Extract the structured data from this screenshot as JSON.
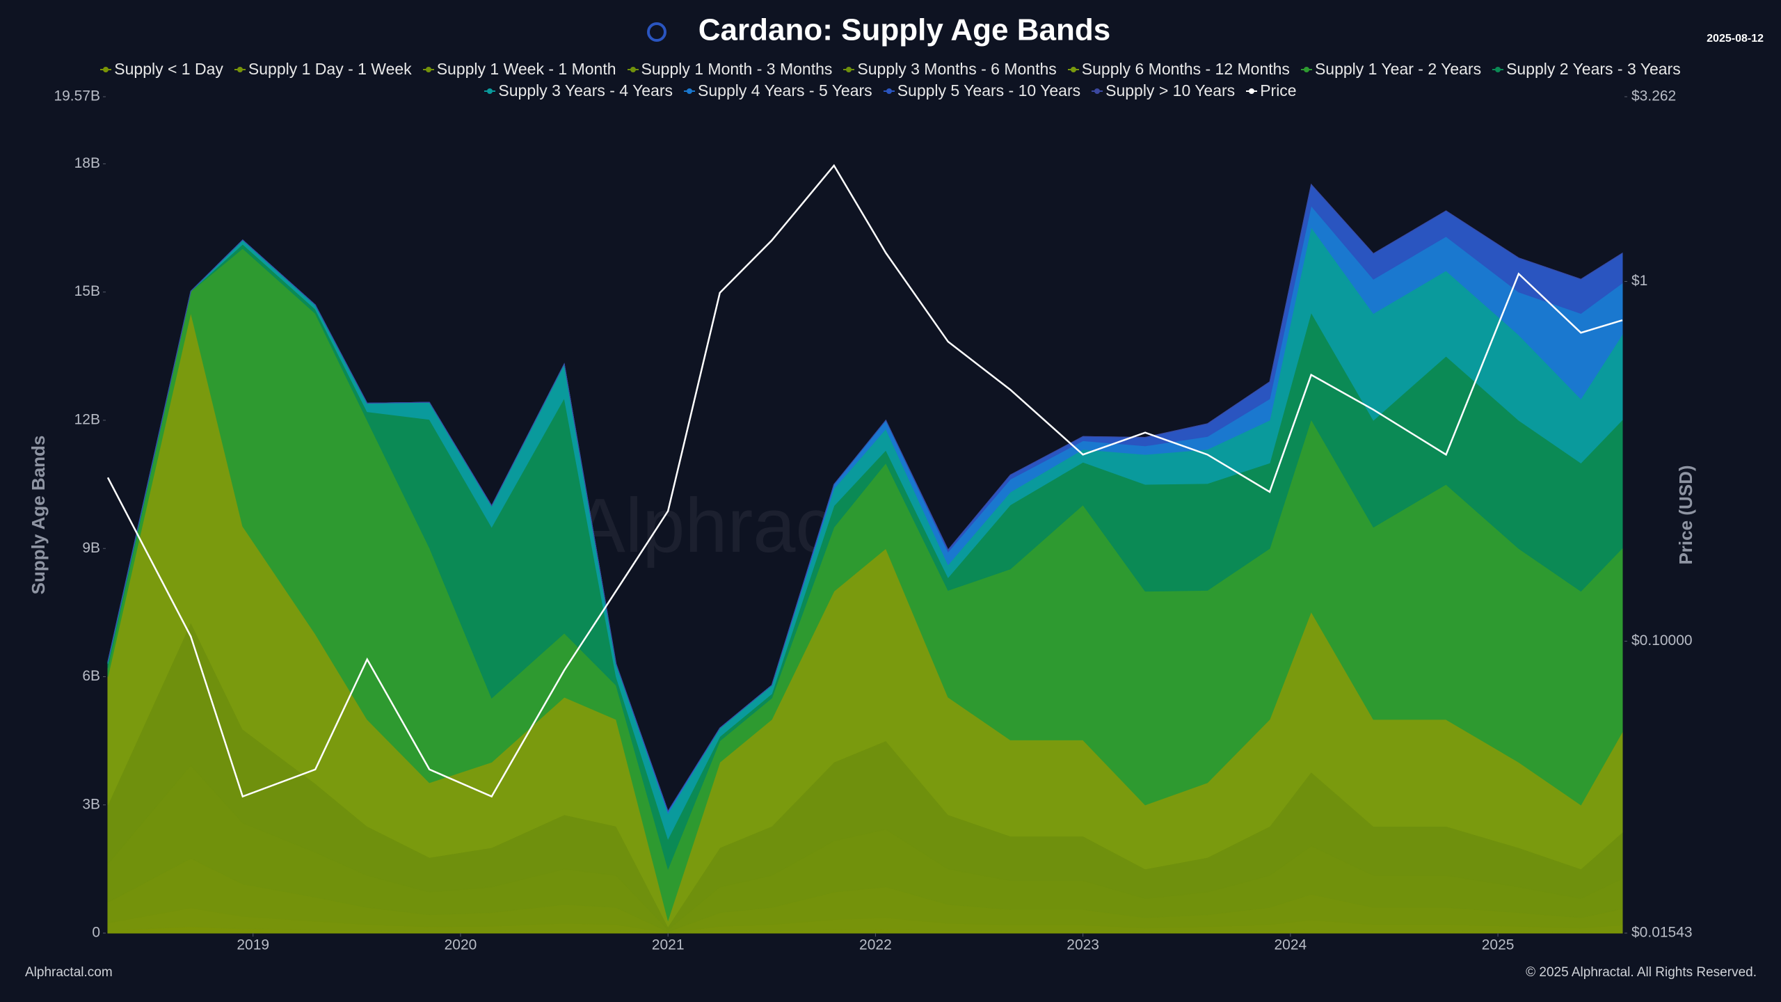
{
  "chart_data": {
    "type": "stacked_area",
    "title": "Cardano: Supply Age Bands",
    "date": "2025-08-12",
    "y_label": "Supply Age Bands",
    "y2_label": "Price (USD)",
    "watermark": "Alphractal",
    "source": "Alphractal.com",
    "copyright": "© 2025 Alphractal. All Rights Reserved.",
    "xlim": [
      2018.29,
      2025.61
    ],
    "xticks": [
      2019,
      2020,
      2021,
      2022,
      2023,
      2024,
      2025
    ],
    "ylim": [
      0,
      19.57
    ],
    "yticks": [
      0,
      {
        "value": 3,
        "label": "3B"
      },
      {
        "value": 6,
        "label": "6B"
      },
      {
        "value": 9,
        "label": "9B"
      },
      {
        "value": 12,
        "label": "12B"
      },
      {
        "value": 15,
        "label": "15B"
      },
      {
        "value": 18,
        "label": "18B"
      },
      {
        "value": 19.57,
        "label": "19.57B"
      }
    ],
    "y2lim": [
      0.01543,
      3.262
    ],
    "y2scale": "log",
    "y2ticks": [
      {
        "value": 0.01543,
        "label": "$0.01543"
      },
      {
        "value": 0.1,
        "label": "$0.10000"
      },
      {
        "value": 1,
        "label": "$1"
      },
      {
        "value": 3.262,
        "label": "$3.262"
      }
    ],
    "grid": false,
    "x": [
      2018.3,
      2018.7,
      2018.95,
      2019.3,
      2019.55,
      2019.85,
      2020.15,
      2020.5,
      2020.75,
      2021.0,
      2021.25,
      2021.5,
      2021.8,
      2022.05,
      2022.35,
      2022.65,
      2023.0,
      2023.3,
      2023.6,
      2023.9,
      2024.1,
      2024.4,
      2024.75,
      2025.1,
      2025.4,
      2025.6
    ],
    "series": [
      {
        "name": "Supply < 1 Day",
        "color": "#7a9406",
        "values": [
          0.06,
          0.15,
          0.1,
          0.07,
          0.05,
          0.04,
          0.04,
          0.06,
          0.05,
          0.003,
          0.04,
          0.05,
          0.08,
          0.09,
          0.06,
          0.05,
          0.05,
          0.03,
          0.04,
          0.05,
          0.08,
          0.05,
          0.05,
          0.04,
          0.03,
          0.05
        ]
      },
      {
        "name": "Supply 1 Day - 1 Week",
        "color": "#77930a",
        "values": [
          0.18,
          0.44,
          0.29,
          0.21,
          0.15,
          0.11,
          0.12,
          0.17,
          0.15,
          0.01,
          0.12,
          0.15,
          0.24,
          0.27,
          0.17,
          0.14,
          0.14,
          0.09,
          0.11,
          0.15,
          0.23,
          0.15,
          0.15,
          0.12,
          0.09,
          0.14
        ]
      },
      {
        "name": "Supply 1 Week - 1 Month",
        "color": "#74920b",
        "values": [
          0.48,
          1.16,
          0.76,
          0.56,
          0.4,
          0.28,
          0.32,
          0.44,
          0.4,
          0.02,
          0.32,
          0.4,
          0.64,
          0.72,
          0.44,
          0.36,
          0.36,
          0.24,
          0.28,
          0.4,
          0.6,
          0.4,
          0.4,
          0.32,
          0.24,
          0.38
        ]
      },
      {
        "name": "Supply 1 Month - 3 Months",
        "color": "#71910c",
        "values": [
          0.9,
          2.18,
          1.43,
          1.05,
          0.75,
          0.53,
          0.6,
          0.83,
          0.75,
          0.05,
          0.6,
          0.75,
          1.2,
          1.35,
          0.83,
          0.68,
          0.68,
          0.45,
          0.53,
          0.75,
          1.13,
          0.75,
          0.75,
          0.6,
          0.45,
          0.71
        ]
      },
      {
        "name": "Supply 3 Months - 6 Months",
        "color": "#6f900d",
        "values": [
          1.38,
          3.34,
          2.19,
          1.61,
          1.15,
          0.81,
          0.92,
          1.27,
          1.15,
          0.07,
          0.92,
          1.15,
          1.84,
          2.07,
          1.27,
          1.04,
          1.04,
          0.69,
          0.81,
          1.15,
          1.73,
          1.15,
          1.15,
          0.92,
          0.69,
          1.08
        ]
      },
      {
        "name": "Supply 6 Months - 12 Months",
        "color": "#7a9a0e",
        "values": [
          3.0,
          7.25,
          4.75,
          3.5,
          2.5,
          1.75,
          2.0,
          2.75,
          2.5,
          0.15,
          2.0,
          2.5,
          4.0,
          4.5,
          2.75,
          2.25,
          2.25,
          1.5,
          1.75,
          2.5,
          3.75,
          2.5,
          2.5,
          2.0,
          1.5,
          2.35
        ]
      },
      {
        "name": "Supply 1 Year - 2 Years",
        "color": "#2e9a30",
        "values": [
          0.2,
          0.5,
          6.5,
          7.5,
          7,
          5.5,
          1.5,
          1.5,
          0.8,
          1.2,
          0.5,
          0.5,
          1.5,
          2,
          2.5,
          4,
          5.5,
          5,
          4.5,
          4,
          4.5,
          4.5,
          5.5,
          5,
          5,
          4.3
        ]
      },
      {
        "name": "Supply 2 Years - 3 Years",
        "color": "#0b8a55",
        "values": [
          0.1,
          0,
          0.1,
          0.1,
          0.2,
          3,
          4,
          5.5,
          0.2,
          0.7,
          0.1,
          0.1,
          0.5,
          0.3,
          0.3,
          1.5,
          1,
          2.5,
          2.5,
          2,
          2.5,
          2.5,
          3,
          3,
          3,
          3
        ]
      },
      {
        "name": "Supply 3 Years - 4 Years",
        "color": "#0a9a9c",
        "values": [
          0.05,
          0,
          0.1,
          0.1,
          0.2,
          0.4,
          0.5,
          0.8,
          0.3,
          0.6,
          0.2,
          0.2,
          0.4,
          0.5,
          0.3,
          0.3,
          0.3,
          0.7,
          0.8,
          1,
          2,
          2.5,
          2,
          2,
          1.5,
          2
        ]
      },
      {
        "name": "Supply 4 Years - 5 Years",
        "color": "#1a78cf",
        "values": [
          0,
          0,
          0,
          0,
          0,
          0,
          0,
          0,
          0,
          0.05,
          0,
          0,
          0.1,
          0.2,
          0.3,
          0.3,
          0.2,
          0.2,
          0.3,
          0.5,
          0.5,
          0.8,
          0.8,
          1,
          2,
          1.2
        ]
      },
      {
        "name": "Supply 5 Years - 10 Years",
        "color": "#2a55c0",
        "values": [
          0,
          0,
          0,
          0,
          0,
          0,
          0,
          0,
          0,
          0,
          0,
          0,
          0,
          0,
          0.05,
          0.1,
          0.1,
          0.2,
          0.3,
          0.4,
          0.5,
          0.6,
          0.6,
          0.8,
          0.8,
          0.7
        ]
      },
      {
        "name": "Supply > 10 Years",
        "color": "#3b48a0",
        "values": [
          0,
          0,
          0,
          0,
          0,
          0,
          0,
          0,
          0,
          0,
          0,
          0,
          0,
          0,
          0,
          0,
          0,
          0,
          0,
          0,
          0,
          0,
          0,
          0,
          0,
          0
        ]
      },
      {
        "name": "Price",
        "color": "#ffffff",
        "axis": "y2",
        "values": [
          0.285,
          0.103,
          0.037,
          0.044,
          0.089,
          0.044,
          0.037,
          0.083,
          0.138,
          0.23,
          0.93,
          1.3,
          2.1,
          1.2,
          0.68,
          0.5,
          0.33,
          0.38,
          0.33,
          0.26,
          0.55,
          0.44,
          0.33,
          1.05,
          0.72,
          0.78
        ]
      }
    ]
  }
}
